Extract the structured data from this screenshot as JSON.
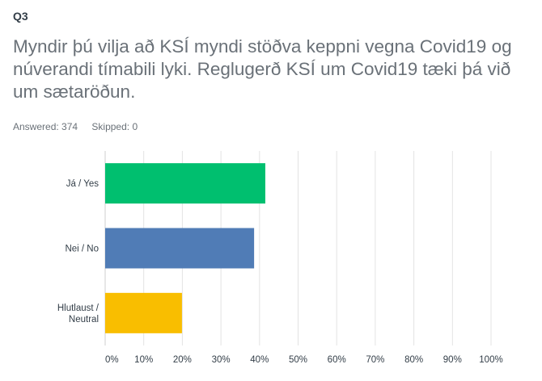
{
  "question": {
    "number": "Q3",
    "title": "Myndir þú vilja að KSÍ myndi stöðva keppni vegna Covid19 og núverandi tímabili lyki. Reglugerð KSÍ um Covid19 tæki þá við um sætaröðun.",
    "answered": "Answered: 374",
    "skipped": "Skipped: 0"
  },
  "chart_data": {
    "type": "bar",
    "orientation": "horizontal",
    "categories": [
      [
        "Já / Yes"
      ],
      [
        "Nei / No"
      ],
      [
        "Hlutlaust /",
        "Neutral"
      ]
    ],
    "values": [
      41.5,
      38.6,
      19.9
    ],
    "colors": [
      "#00bf6f",
      "#507cb6",
      "#f9be00"
    ],
    "xlim": [
      0,
      100
    ],
    "xticks": [
      "0%",
      "10%",
      "20%",
      "30%",
      "40%",
      "50%",
      "60%",
      "70%",
      "80%",
      "90%",
      "100%"
    ],
    "grid": true
  }
}
